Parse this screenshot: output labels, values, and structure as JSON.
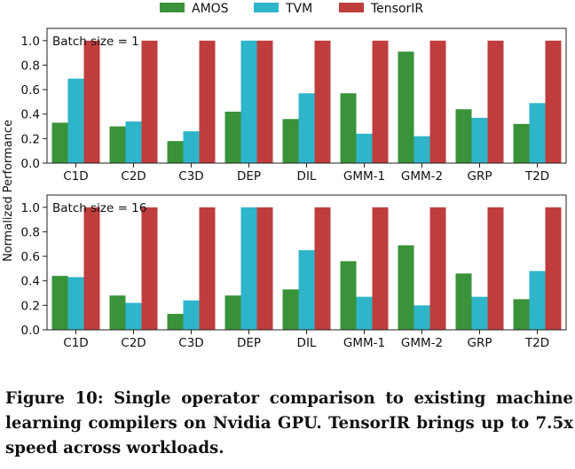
{
  "colors": {
    "AMOS": "#3a923a",
    "TVM": "#2fb5c9",
    "TensorIR": "#c03d3e"
  },
  "chart_data": [
    {
      "type": "bar",
      "panel_label": "Batch size = 1",
      "ylabel": "Normalized Performance",
      "ylim": [
        0,
        1.1
      ],
      "yticks": [
        "0.0",
        "0.2",
        "0.4",
        "0.6",
        "0.8",
        "1.0"
      ],
      "categories": [
        "C1D",
        "C2D",
        "C3D",
        "DEP",
        "DIL",
        "GMM-1",
        "GMM-2",
        "GRP",
        "T2D"
      ],
      "series": [
        {
          "name": "AMOS",
          "values": [
            0.33,
            0.3,
            0.18,
            0.42,
            0.36,
            0.57,
            0.91,
            0.44,
            0.32
          ]
        },
        {
          "name": "TVM",
          "values": [
            0.69,
            0.34,
            0.26,
            1.0,
            0.57,
            0.24,
            0.22,
            0.37,
            0.49
          ]
        },
        {
          "name": "TensorIR",
          "values": [
            1.0,
            1.0,
            1.0,
            1.0,
            1.0,
            1.0,
            1.0,
            1.0,
            1.0
          ]
        }
      ],
      "legend": "top-center"
    },
    {
      "type": "bar",
      "panel_label": "Batch size = 16",
      "ylabel": "Normalized Performance",
      "ylim": [
        0,
        1.1
      ],
      "yticks": [
        "0.0",
        "0.2",
        "0.4",
        "0.6",
        "0.8",
        "1.0"
      ],
      "categories": [
        "C1D",
        "C2D",
        "C3D",
        "DEP",
        "DIL",
        "GMM-1",
        "GMM-2",
        "GRP",
        "T2D"
      ],
      "series": [
        {
          "name": "AMOS",
          "values": [
            0.44,
            0.28,
            0.13,
            0.28,
            0.33,
            0.56,
            0.69,
            0.46,
            0.25
          ]
        },
        {
          "name": "TVM",
          "values": [
            0.43,
            0.22,
            0.24,
            1.0,
            0.65,
            0.27,
            0.2,
            0.27,
            0.48
          ]
        },
        {
          "name": "TensorIR",
          "values": [
            1.0,
            1.0,
            1.0,
            1.0,
            1.0,
            1.0,
            1.0,
            1.0,
            1.0
          ]
        }
      ]
    }
  ],
  "caption": "Figure 10: Single operator comparison to existing machine learning compilers on Nvidia GPU. TensorIR brings up to 7.5x speed across workloads."
}
